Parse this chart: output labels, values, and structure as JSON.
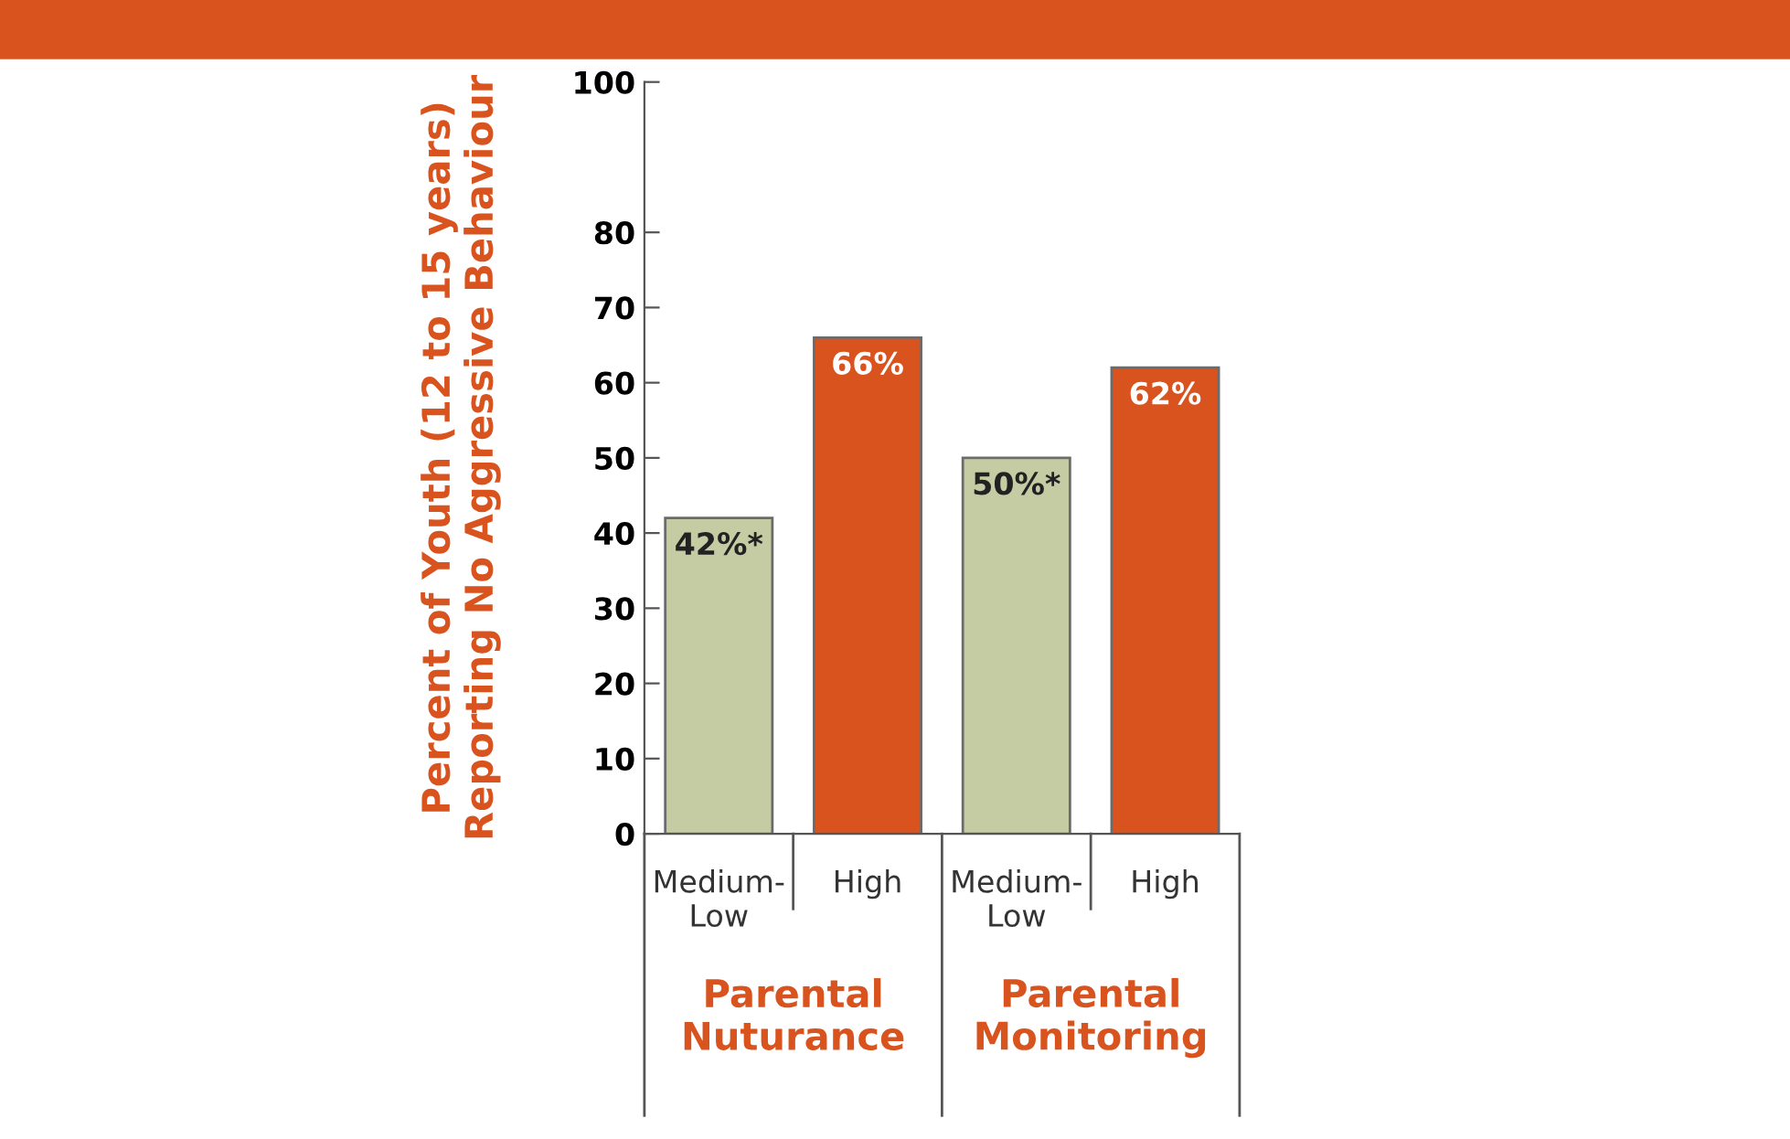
{
  "chart_data": {
    "type": "bar",
    "ylabel": "Percent of Youth (12 to 15 years)\nReporting No Aggressive Behaviour",
    "categories": [
      "Medium-\nLow",
      "High",
      "Medium-\nLow",
      "High"
    ],
    "values": [
      42,
      66,
      50,
      62
    ],
    "colors": [
      "#c5cca4",
      "#d9531e",
      "#c5cca4",
      "#d9531e"
    ],
    "value_labels": [
      "42%*",
      "66%",
      "50%*",
      "62%"
    ],
    "annotations": [
      "Parental\nNuturance",
      "Parental\nMonitoring"
    ],
    "ylim": [
      0,
      100
    ],
    "yticks": [
      0,
      10,
      20,
      30,
      40,
      50,
      60,
      70,
      80,
      100
    ],
    "grid": false
  }
}
